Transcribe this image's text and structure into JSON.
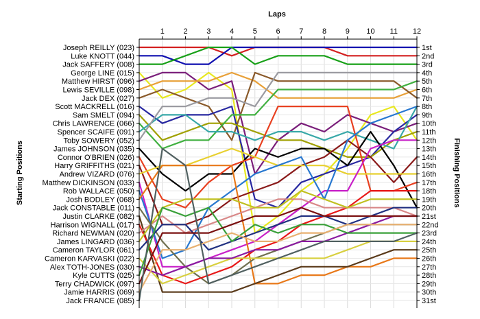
{
  "chart_data": {
    "type": "line",
    "title": "",
    "xlabel": "Laps",
    "ylabel_left": "Starting Positions",
    "ylabel_right": "Finishing Positions",
    "x": [
      0,
      1,
      2,
      3,
      4,
      5,
      6,
      7,
      8,
      9,
      10,
      11,
      12
    ],
    "x_tick_labels": [
      "1",
      "2",
      "3",
      "4",
      "5",
      "6",
      "7",
      "8",
      "9",
      "10",
      "11",
      "12"
    ],
    "ylim": [
      1,
      31
    ],
    "y_inverted": true,
    "grid": true,
    "finish_labels": [
      "1st",
      "2nd",
      "3rd",
      "4th",
      "5th",
      "6th",
      "7th",
      "8th",
      "9th",
      "10th",
      "11th",
      "12th",
      "13th",
      "14th",
      "15th",
      "16th",
      "17th",
      "18th",
      "19th",
      "20th",
      "21st",
      "22nd",
      "23rd",
      "24th",
      "25th",
      "26th",
      "27th",
      "28th",
      "29th",
      "30th",
      "31st"
    ],
    "series": [
      {
        "name": "Joseph REILLY (023)",
        "color": "#d42020",
        "values": [
          1,
          1,
          1,
          1,
          2,
          1,
          1,
          1,
          1,
          2,
          2,
          2,
          2
        ]
      },
      {
        "name": "Luke KNOTT (044)",
        "color": "#1010b0",
        "values": [
          2,
          2,
          3,
          3,
          1,
          1,
          1,
          1,
          1,
          1,
          1,
          1,
          1
        ]
      },
      {
        "name": "Jack SAFFERY (008)",
        "color": "#18a018",
        "values": [
          3,
          3,
          2,
          1,
          1,
          3,
          2,
          2,
          2,
          3,
          3,
          3,
          3
        ]
      },
      {
        "name": "George LINE (015)",
        "color": "#e8e820",
        "values": [
          4,
          7,
          6,
          4,
          6,
          23,
          21,
          18,
          16,
          13,
          9,
          8,
          12
        ]
      },
      {
        "name": "Matthew HIRST (096)",
        "color": "#7a1e7a",
        "values": [
          5,
          4,
          4,
          6,
          5,
          16,
          12,
          10,
          11,
          9,
          10,
          11,
          10
        ]
      },
      {
        "name": "Lewis SEVILLE (098)",
        "color": "#e8a038",
        "values": [
          6,
          5,
          5,
          5,
          4,
          5,
          7,
          7,
          7,
          7,
          7,
          7,
          6
        ]
      },
      {
        "name": "Jack DEX (027)",
        "color": "#8a5a2a",
        "values": [
          7,
          6,
          7,
          8,
          12,
          4,
          5,
          5,
          5,
          5,
          5,
          5,
          7
        ]
      },
      {
        "name": "Scott MACKRELL (016)",
        "color": "#2828a0",
        "values": [
          8,
          10,
          9,
          9,
          8,
          19,
          20,
          17,
          16,
          15,
          14,
          11,
          9
        ]
      },
      {
        "name": "Sam SMELT (094)",
        "color": "#a0a000",
        "values": [
          9,
          12,
          11,
          10,
          10,
          11,
          12,
          12,
          13,
          14,
          14,
          12,
          11
        ]
      },
      {
        "name": "Chris LAWRENCE (066)",
        "color": "#40b040",
        "values": [
          10,
          13,
          12,
          12,
          9,
          9,
          6,
          6,
          6,
          6,
          6,
          6,
          5
        ]
      },
      {
        "name": "Spencer SCAIFE (091)",
        "color": "#38a8a8",
        "values": [
          11,
          9,
          9,
          11,
          11,
          12,
          11,
          11,
          12,
          11,
          12,
          13,
          8
        ]
      },
      {
        "name": "Toby SOWERY (052)",
        "color": "#9a9aa0",
        "values": [
          12,
          8,
          8,
          7,
          7,
          8,
          4,
          4,
          4,
          4,
          4,
          4,
          4
        ]
      },
      {
        "name": "James JOHNSON (035)",
        "color": "#000000",
        "values": [
          13,
          16,
          18,
          16,
          16,
          13,
          14,
          13,
          13,
          15,
          11,
          15,
          20
        ]
      },
      {
        "name": "Connor O'BRIEN (026)",
        "color": "#e84020",
        "values": [
          14,
          19,
          20,
          17,
          15,
          14,
          8,
          8,
          8,
          8,
          18,
          18,
          17
        ]
      },
      {
        "name": "Harry GRIFFITHS (021)",
        "color": "#8a1a1a",
        "values": [
          15,
          22,
          22,
          21,
          19,
          18,
          17,
          15,
          14,
          12,
          14,
          17,
          14
        ]
      },
      {
        "name": "Andrew VIZARD (076)",
        "color": "#e8d030",
        "values": [
          16,
          15,
          15,
          14,
          13,
          14,
          15,
          15,
          15,
          16,
          16,
          16,
          16
        ]
      },
      {
        "name": "Matthew DICKINSON (033)",
        "color": "#c820c8",
        "values": [
          17,
          27,
          27,
          26,
          25,
          24,
          22,
          20,
          18,
          18,
          13,
          12,
          12
        ]
      },
      {
        "name": "Rob WALLACE (050)",
        "color": "#2878d0",
        "values": [
          18,
          26,
          25,
          20,
          18,
          16,
          15,
          14,
          19,
          12,
          10,
          9,
          8
        ]
      },
      {
        "name": "Josh BODLEY (068)",
        "color": "#e87818",
        "values": [
          19,
          15,
          15,
          15,
          15,
          29,
          29,
          28,
          28,
          27,
          27,
          26,
          26
        ]
      },
      {
        "name": "Jack CONSTABLE (011)",
        "color": "#707050",
        "values": [
          20,
          24,
          27,
          29,
          28,
          26,
          25,
          24,
          23,
          22,
          22,
          22,
          22
        ]
      },
      {
        "name": "Justin CLARKE (082)",
        "color": "#5a3a1a",
        "values": [
          21,
          30,
          30,
          30,
          30,
          29,
          28,
          27,
          27,
          27,
          26,
          25,
          25
        ]
      },
      {
        "name": "Harrison WIGNALL (017)",
        "color": "#e81818",
        "values": [
          22,
          28,
          29,
          28,
          27,
          25,
          24,
          22,
          21,
          20,
          18,
          18,
          18
        ]
      },
      {
        "name": "Richard NEWMAN (020)",
        "color": "#d88888",
        "values": [
          23,
          21,
          23,
          22,
          21,
          20,
          19,
          19,
          20,
          20,
          20,
          20,
          21
        ]
      },
      {
        "name": "James LINGARD (036)",
        "color": "#c0c020",
        "values": [
          24,
          20,
          19,
          19,
          19,
          20,
          20,
          18,
          19,
          20,
          19,
          19,
          19
        ]
      },
      {
        "name": "Cameron TAYLOR (061)",
        "color": "#203080",
        "values": [
          25,
          22,
          22,
          25,
          24,
          23,
          22,
          21,
          21,
          22,
          21,
          20,
          20
        ]
      },
      {
        "name": "Cameron KARVASKI (022)",
        "color": "#d8d040",
        "values": [
          26,
          29,
          28,
          27,
          26,
          26,
          26,
          26,
          26,
          25,
          24,
          24,
          24
        ]
      },
      {
        "name": "Alex TOTH-JONES (030)",
        "color": "#8a1aa0",
        "values": [
          27,
          28,
          27,
          26,
          26,
          25,
          25,
          24,
          24,
          23,
          22,
          21,
          21
        ]
      },
      {
        "name": "Kyle CUTTS (025)",
        "color": "#3aa03a",
        "values": [
          28,
          20,
          21,
          20,
          24,
          22,
          23,
          22,
          22,
          23,
          23,
          23,
          23
        ]
      },
      {
        "name": "Terry CHADWICK (097)",
        "color": "#7a1010",
        "values": [
          29,
          23,
          23,
          23,
          22,
          21,
          21,
          20,
          21,
          21,
          21,
          21,
          21
        ]
      },
      {
        "name": "Jamie HARRIS (069)",
        "color": "#e8b070",
        "values": [
          30,
          25,
          25,
          24,
          23,
          24,
          24,
          23,
          23,
          22,
          22,
          22,
          22
        ]
      },
      {
        "name": "Jack FRANCE (085)",
        "color": "#506060",
        "values": [
          31,
          13,
          15,
          29,
          28,
          27,
          26,
          25,
          24,
          24,
          24,
          24,
          23
        ]
      }
    ]
  }
}
